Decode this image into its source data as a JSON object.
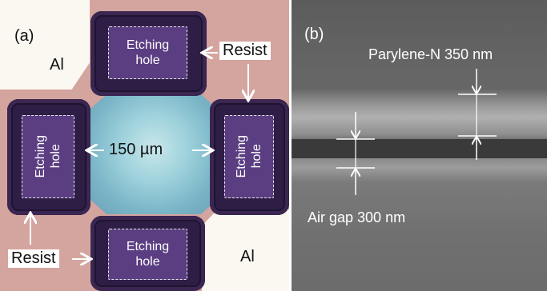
{
  "panel_a": {
    "label": "(a)",
    "hole_label_line1": "Etching",
    "hole_label_line2": "hole",
    "al_label": "Al",
    "resist_label": "Resist",
    "scale_label": "150 µm"
  },
  "panel_b": {
    "label": "(b)",
    "parylene_label": "Parylene-N 350 nm",
    "airgap_label": "Air gap 300 nm"
  }
}
